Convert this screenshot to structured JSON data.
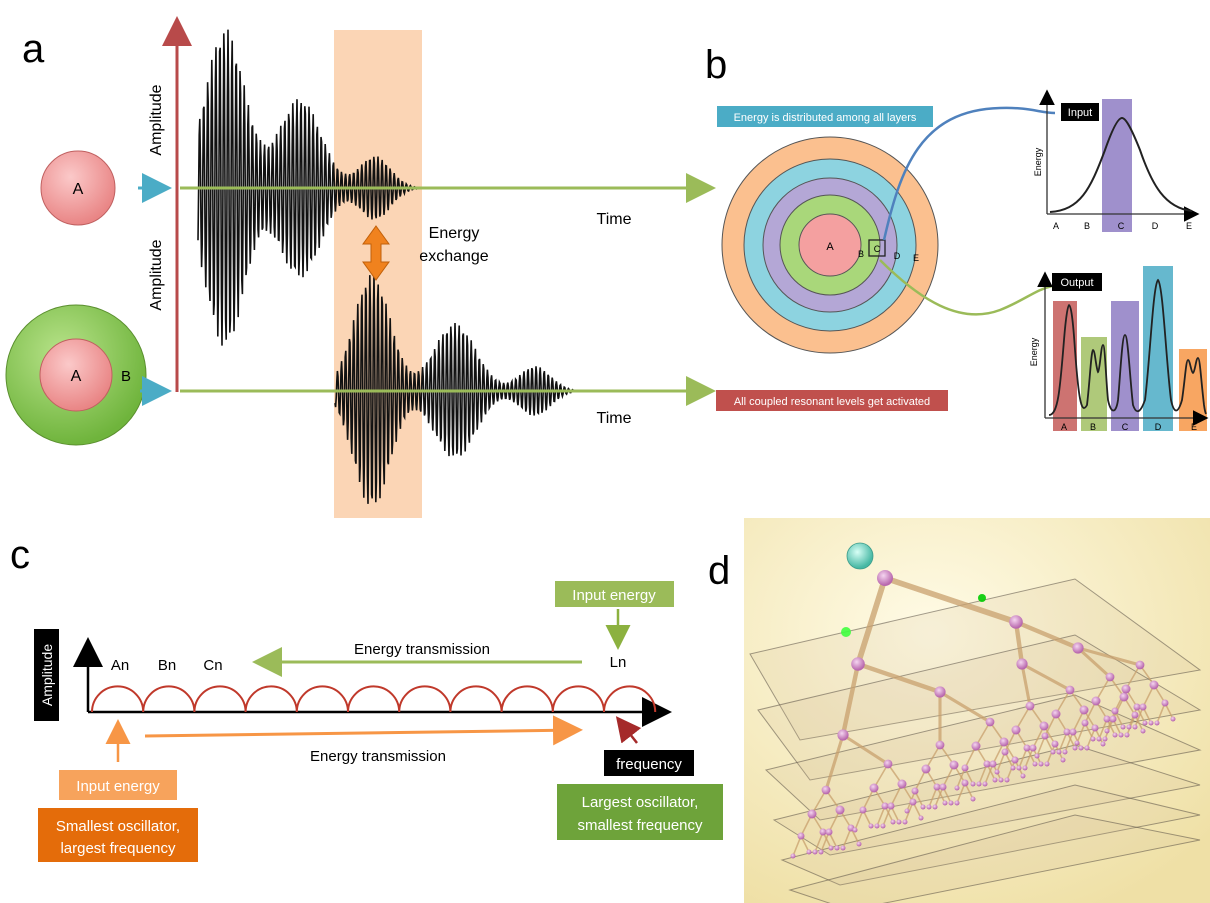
{
  "panel_a": {
    "letter": "a",
    "amplitude_label_top": "Amplitude",
    "amplitude_label_bottom": "Amplitude",
    "time_label_top": "Time",
    "time_label_bottom": "Time",
    "circle_a_label": "A",
    "circle_inner_label": "A",
    "circle_outer_label": "B",
    "energy_exchange_line1": "Energy",
    "energy_exchange_line2": "exchange"
  },
  "panel_b": {
    "letter": "b",
    "distributed_label": "Energy is distributed among all layers",
    "activated_label": "All coupled resonant levels get activated",
    "ring_labels": [
      "A",
      "B",
      "C",
      "D",
      "E"
    ],
    "input_plot": {
      "title": "Input",
      "ylabel": "Energy",
      "categories": [
        "A",
        "B",
        "C",
        "D",
        "E"
      ]
    },
    "output_plot": {
      "title": "Output",
      "ylabel": "Energy",
      "categories": [
        "A",
        "B",
        "C",
        "D",
        "E"
      ]
    }
  },
  "panel_c": {
    "letter": "c",
    "amplitude_label": "Amplitude",
    "input_energy_top": "Input energy",
    "energy_transmission_top": "Energy transmission",
    "energy_transmission_bottom": "Energy transmission",
    "oscillator_labels": [
      "An",
      "Bn",
      "Cn",
      "Ln"
    ],
    "frequency_label": "frequency",
    "input_energy_bottom": "Input energy",
    "smallest_line1": "Smallest oscillator,",
    "smallest_line2": "largest frequency",
    "largest_line1": "Largest oscillator,",
    "largest_line2": "smallest frequency"
  },
  "panel_d": {
    "letter": "d"
  },
  "colors": {
    "red_axis": "#b84a4a",
    "green_line": "#9bbb59",
    "blue_arrow": "#4bacc6",
    "orange_band": "#fbd5b5",
    "orange_arrow": "#e46c0a",
    "pink": "#f4a0a0",
    "green_ring": "#92d050",
    "purple_ring": "#b4a7d6",
    "blue_ring": "#8dd3e0",
    "orange_ring": "#fbc08f",
    "arch_red": "#c0392b",
    "panel_d_bg": "#f6ecc4"
  }
}
